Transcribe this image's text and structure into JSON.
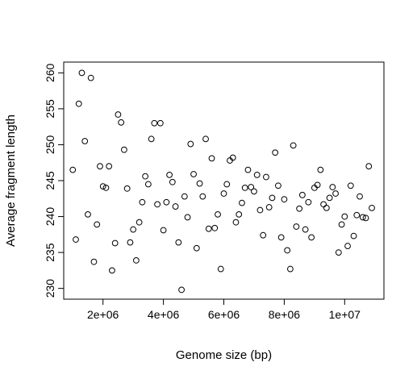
{
  "chart_data": {
    "type": "scatter",
    "title": "",
    "xlabel": "Genome size (bp)",
    "ylabel": "Average fragment length",
    "xlim": [
      700000,
      11300000
    ],
    "ylim": [
      228.5,
      261.5
    ],
    "x_ticks": [
      2000000,
      4000000,
      6000000,
      8000000,
      10000000
    ],
    "x_tick_labels": [
      "2e+06",
      "4e+06",
      "6e+06",
      "8e+06",
      "1e+07"
    ],
    "y_ticks": [
      230,
      235,
      240,
      245,
      250,
      255,
      260
    ],
    "y_tick_labels": [
      "230",
      "235",
      "240",
      "245",
      "250",
      "255",
      "260"
    ],
    "grid": false,
    "legend": "none",
    "marker": "open-circle",
    "x": [
      1000000,
      1100000,
      1200000,
      1300000,
      1400000,
      1500000,
      1600000,
      1700000,
      1800000,
      1900000,
      2000000,
      2100000,
      2200000,
      2300000,
      2400000,
      2500000,
      2600000,
      2700000,
      2800000,
      2900000,
      3000000,
      3100000,
      3200000,
      3300000,
      3400000,
      3500000,
      3600000,
      3700000,
      3800000,
      3900000,
      4000000,
      4100000,
      4200000,
      4300000,
      4400000,
      4500000,
      4600000,
      4700000,
      4800000,
      4900000,
      5000000,
      5100000,
      5200000,
      5300000,
      5400000,
      5500000,
      5600000,
      5700000,
      5800000,
      5900000,
      6000000,
      6100000,
      6200000,
      6300000,
      6400000,
      6500000,
      6600000,
      6700000,
      6800000,
      6900000,
      7000000,
      7100000,
      7200000,
      7300000,
      7400000,
      7500000,
      7600000,
      7700000,
      7800000,
      7900000,
      8000000,
      8100000,
      8200000,
      8300000,
      8400000,
      8500000,
      8600000,
      8700000,
      8800000,
      8900000,
      9000000,
      9100000,
      9200000,
      9300000,
      9400000,
      9500000,
      9600000,
      9700000,
      9800000,
      9900000,
      10000000,
      10100000,
      10200000,
      10300000,
      10400000,
      10500000,
      10600000,
      10700000,
      10800000,
      10900000
    ],
    "y": [
      246.5,
      236.8,
      255.7,
      260.0,
      250.5,
      240.3,
      259.3,
      233.7,
      238.9,
      247.0,
      244.2,
      244.0,
      247.0,
      232.5,
      236.3,
      254.2,
      253.1,
      249.3,
      243.9,
      236.4,
      238.2,
      233.9,
      239.2,
      242.0,
      245.6,
      244.5,
      250.8,
      253.0,
      241.7,
      253.0,
      238.1,
      242.0,
      245.8,
      244.8,
      241.4,
      236.4,
      229.8,
      242.8,
      239.9,
      250.1,
      245.9,
      235.6,
      244.6,
      242.8,
      250.8,
      238.3,
      248.1,
      238.4,
      240.3,
      232.7,
      243.2,
      244.5,
      247.8,
      248.2,
      239.2,
      240.3,
      241.9,
      244.0,
      246.5,
      244.1,
      243.5,
      245.8,
      240.9,
      237.4,
      245.5,
      241.3,
      242.6,
      248.9,
      244.3,
      237.1,
      242.4,
      235.3,
      232.7,
      249.9,
      238.6,
      241.1,
      243.0,
      238.2,
      242.0,
      237.1,
      244.0,
      244.4,
      246.5,
      241.7,
      241.2,
      242.6,
      244.1,
      243.2,
      235.0,
      238.9,
      240.0,
      235.9,
      244.3,
      237.3,
      240.2,
      242.8,
      239.9,
      239.8,
      247.0,
      241.2
    ]
  }
}
